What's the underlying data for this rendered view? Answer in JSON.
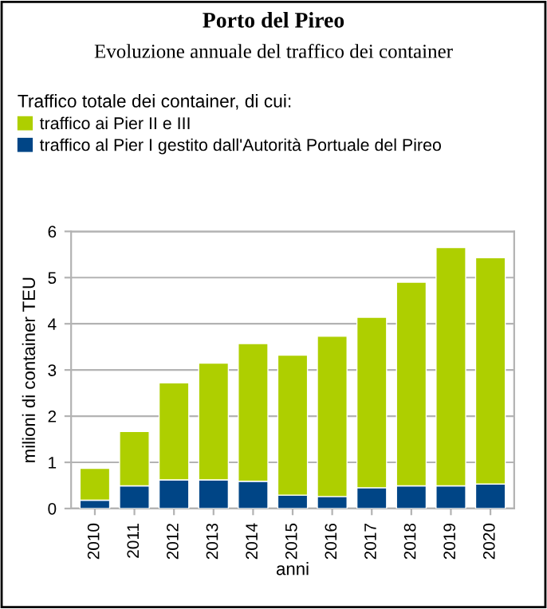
{
  "chart_data": {
    "type": "bar",
    "title": "Porto del Pireo",
    "subtitle": "Evoluzione annuale del traffico dei container",
    "legend_title": "Traffico totale dei container, di cui:",
    "xlabel": "anni",
    "ylabel": "milioni di container TEU",
    "categories": [
      "2010",
      "2011",
      "2012",
      "2013",
      "2014",
      "2015",
      "2016",
      "2017",
      "2018",
      "2019",
      "2020"
    ],
    "series": [
      {
        "name": "traffico al Pier I gestito dall'Autorità Portuale del Pireo",
        "color": "#004586",
        "values": [
          0.18,
          0.49,
          0.62,
          0.62,
          0.59,
          0.29,
          0.26,
          0.45,
          0.49,
          0.49,
          0.53
        ]
      },
      {
        "name": "traffico ai Pier II e III",
        "color": "#aecf00",
        "values": [
          0.69,
          1.18,
          2.1,
          2.53,
          2.98,
          3.03,
          3.47,
          3.69,
          4.41,
          5.16,
          4.9
        ]
      }
    ],
    "stacked": true,
    "ylim": [
      0,
      6
    ],
    "yticks": [
      0,
      1,
      2,
      3,
      4,
      5,
      6
    ],
    "grid": "y",
    "legend": "top"
  }
}
